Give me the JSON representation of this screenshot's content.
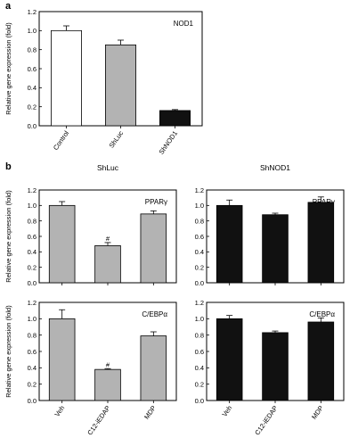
{
  "chart_data": [
    {
      "panel_letter": "a",
      "type": "bar",
      "inset_label": "NOD1",
      "ylabel": "Relative gene expression (fold)",
      "ylim": [
        0,
        1.2
      ],
      "yticks": [
        "0.0",
        "0.2",
        "0.4",
        "0.6",
        "0.8",
        "1.0",
        "1.2"
      ],
      "categories": [
        "Control",
        "ShLuc",
        "ShNOD1"
      ],
      "values": [
        1.0,
        0.85,
        0.16
      ],
      "errors": [
        0.05,
        0.05,
        0.01
      ],
      "colors": [
        "#ffffff",
        "#b3b3b3",
        "#111111"
      ]
    },
    {
      "panel_letter": "b",
      "title": "ShLuc",
      "type": "bar",
      "inset_label": "PPARγ",
      "ylabel": "Relative gene expression (fold)",
      "ylim": [
        0,
        1.2
      ],
      "yticks": [
        "0.0",
        "0.2",
        "0.4",
        "0.6",
        "0.8",
        "1.0",
        "1.2"
      ],
      "categories": [
        "Veh",
        "C12-iEDAP",
        "MDP"
      ],
      "values": [
        1.0,
        0.48,
        0.89
      ],
      "errors": [
        0.05,
        0.04,
        0.04
      ],
      "annotations": [
        "",
        "#",
        ""
      ],
      "colors": [
        "#b3b3b3",
        "#b3b3b3",
        "#b3b3b3"
      ]
    },
    {
      "title": "ShNOD1",
      "type": "bar",
      "inset_label": "PPARγ",
      "ylabel": "",
      "ylim": [
        0,
        1.2
      ],
      "yticks": [
        "0.0",
        "0.2",
        "0.4",
        "0.6",
        "0.8",
        "1.0",
        "1.2"
      ],
      "categories": [
        "Veh",
        "C12-iEDAP",
        "MDP"
      ],
      "values": [
        1.0,
        0.88,
        1.04
      ],
      "errors": [
        0.07,
        0.02,
        0.07
      ],
      "colors": [
        "#111111",
        "#111111",
        "#111111"
      ]
    },
    {
      "type": "bar",
      "inset_label": "C/EBPα",
      "ylabel": "Relative gene expression (fold)",
      "ylim": [
        0,
        1.2
      ],
      "yticks": [
        "0.0",
        "0.2",
        "0.4",
        "0.6",
        "0.8",
        "1.0",
        "1.2"
      ],
      "categories": [
        "Veh",
        "C12-iEDAP",
        "MDP"
      ],
      "values": [
        1.0,
        0.38,
        0.79
      ],
      "errors": [
        0.11,
        0.01,
        0.05
      ],
      "annotations": [
        "",
        "#",
        ""
      ],
      "colors": [
        "#b3b3b3",
        "#b3b3b3",
        "#b3b3b3"
      ]
    },
    {
      "type": "bar",
      "inset_label": "C/EBPα",
      "ylabel": "",
      "ylim": [
        0,
        1.2
      ],
      "yticks": [
        "0.0",
        "0.2",
        "0.4",
        "0.6",
        "0.8",
        "1.0",
        "1.2"
      ],
      "categories": [
        "Veh",
        "C12-iEDAP",
        "MDP"
      ],
      "values": [
        1.0,
        0.83,
        0.96
      ],
      "errors": [
        0.04,
        0.02,
        0.05
      ],
      "colors": [
        "#111111",
        "#111111",
        "#111111"
      ]
    }
  ]
}
